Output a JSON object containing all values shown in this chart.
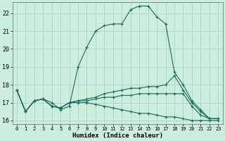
{
  "xlabel": "Humidex (Indice chaleur)",
  "bg_color": "#cceedd",
  "grid_color": "#aacccc",
  "line_color": "#1a6b5a",
  "xlim": [
    -0.5,
    23.5
  ],
  "ylim": [
    15.8,
    22.6
  ],
  "yticks": [
    16,
    17,
    18,
    19,
    20,
    21,
    22
  ],
  "xticks": [
    0,
    1,
    2,
    3,
    4,
    5,
    6,
    7,
    8,
    9,
    10,
    11,
    12,
    13,
    14,
    15,
    16,
    17,
    18,
    19,
    20,
    21,
    22,
    23
  ],
  "line1": [
    17.7,
    16.5,
    17.1,
    17.2,
    17.0,
    16.6,
    16.8,
    19.0,
    20.1,
    21.0,
    21.3,
    21.4,
    21.4,
    22.2,
    22.4,
    22.4,
    21.8,
    21.4,
    18.7,
    18.0,
    17.1,
    16.6,
    16.1,
    16.1
  ],
  "line2": [
    17.7,
    16.5,
    17.1,
    17.2,
    16.8,
    16.7,
    17.0,
    17.1,
    17.2,
    17.3,
    17.5,
    17.6,
    17.7,
    17.8,
    17.8,
    17.9,
    17.9,
    18.0,
    18.5,
    17.7,
    17.0,
    16.5,
    16.1,
    16.1
  ],
  "line3": [
    17.7,
    16.5,
    17.1,
    17.2,
    16.8,
    16.7,
    17.0,
    17.1,
    17.1,
    17.2,
    17.3,
    17.3,
    17.4,
    17.4,
    17.5,
    17.5,
    17.5,
    17.5,
    17.5,
    17.5,
    16.8,
    16.3,
    16.1,
    16.1
  ],
  "line4": [
    17.7,
    16.5,
    17.1,
    17.2,
    16.8,
    16.7,
    17.0,
    17.0,
    17.0,
    16.9,
    16.8,
    16.7,
    16.6,
    16.5,
    16.4,
    16.4,
    16.3,
    16.2,
    16.2,
    16.1,
    16.0,
    16.0,
    16.0,
    16.0
  ]
}
